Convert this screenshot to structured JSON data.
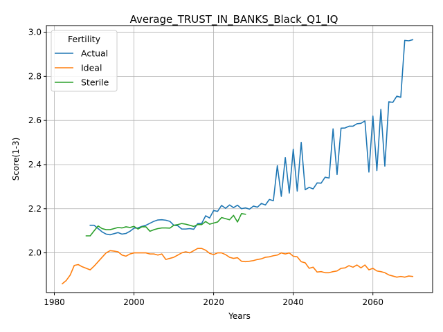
{
  "chart_data": {
    "type": "line",
    "title": "Average_TRUST_IN_BANKS_Black_Q1_IQ",
    "xlabel": "Years",
    "ylabel": "Score(1-3)",
    "xlim": [
      1978,
      2075
    ],
    "ylim": [
      1.82,
      3.03
    ],
    "xticks": [
      1980,
      2000,
      2020,
      2040,
      2060
    ],
    "yticks": [
      2.0,
      2.2,
      2.4,
      2.6,
      2.8,
      3.0
    ],
    "xtick_labels": [
      "1980",
      "2000",
      "2020",
      "2040",
      "2060"
    ],
    "ytick_labels": [
      "2.0",
      "2.2",
      "2.4",
      "2.6",
      "2.8",
      "3.0"
    ],
    "grid": true,
    "legend": {
      "title": "Fertility",
      "position": "top-left"
    },
    "series": [
      {
        "name": "Actual",
        "color": "#1f77b4",
        "x": [
          1989,
          1990,
          1991,
          1992,
          1993,
          1994,
          1995,
          1996,
          1997,
          1998,
          1999,
          2000,
          2001,
          2002,
          2003,
          2004,
          2005,
          2006,
          2007,
          2008,
          2009,
          2010,
          2011,
          2012,
          2013,
          2014,
          2015,
          2016,
          2017,
          2018,
          2019,
          2020,
          2021,
          2022,
          2023,
          2024,
          2025,
          2026,
          2027,
          2028,
          2029,
          2030,
          2031,
          2032,
          2033,
          2034,
          2035,
          2036,
          2037,
          2038,
          2039,
          2040,
          2041,
          2042,
          2043,
          2044,
          2045,
          2046,
          2047,
          2048,
          2049,
          2050,
          2051,
          2052,
          2053,
          2054,
          2055,
          2056,
          2057,
          2058,
          2059,
          2060,
          2061,
          2062,
          2063,
          2064,
          2065,
          2066,
          2067,
          2068,
          2069,
          2070
        ],
        "y": [
          2.125,
          2.125,
          2.11,
          2.095,
          2.085,
          2.082,
          2.087,
          2.092,
          2.085,
          2.088,
          2.098,
          2.112,
          2.113,
          2.12,
          2.125,
          2.134,
          2.143,
          2.149,
          2.15,
          2.148,
          2.143,
          2.125,
          2.123,
          2.108,
          2.108,
          2.11,
          2.107,
          2.133,
          2.133,
          2.168,
          2.158,
          2.192,
          2.188,
          2.215,
          2.202,
          2.217,
          2.205,
          2.216,
          2.2,
          2.204,
          2.198,
          2.212,
          2.207,
          2.224,
          2.217,
          2.242,
          2.236,
          2.395,
          2.256,
          2.432,
          2.271,
          2.47,
          2.28,
          2.501,
          2.286,
          2.297,
          2.29,
          2.317,
          2.316,
          2.343,
          2.339,
          2.562,
          2.355,
          2.565,
          2.566,
          2.574,
          2.574,
          2.585,
          2.587,
          2.598,
          2.366,
          2.62,
          2.373,
          2.65,
          2.393,
          2.685,
          2.682,
          2.71,
          2.705,
          2.963,
          2.961,
          2.966
        ]
      },
      {
        "name": "Ideal",
        "color": "#ff7f0e",
        "x": [
          1982,
          1983,
          1984,
          1985,
          1986,
          1987,
          1988,
          1989,
          1990,
          1991,
          1992,
          1993,
          1994,
          1995,
          1996,
          1997,
          1998,
          1999,
          2000,
          2001,
          2002,
          2003,
          2004,
          2005,
          2006,
          2007,
          2008,
          2009,
          2010,
          2011,
          2012,
          2013,
          2014,
          2015,
          2016,
          2017,
          2018,
          2019,
          2020,
          2021,
          2022,
          2023,
          2024,
          2025,
          2026,
          2027,
          2028,
          2029,
          2030,
          2031,
          2032,
          2033,
          2034,
          2035,
          2036,
          2037,
          2038,
          2039,
          2040,
          2041,
          2042,
          2043,
          2044,
          2045,
          2046,
          2047,
          2048,
          2049,
          2050,
          2051,
          2052,
          2053,
          2054,
          2055,
          2056,
          2057,
          2058,
          2059,
          2060,
          2061,
          2062,
          2063,
          2064,
          2065,
          2066,
          2067,
          2068,
          2069,
          2070
        ],
        "y": [
          1.86,
          1.875,
          1.9,
          1.943,
          1.947,
          1.937,
          1.93,
          1.923,
          1.94,
          1.96,
          1.98,
          2.0,
          2.01,
          2.008,
          2.005,
          1.99,
          1.985,
          1.995,
          2.0,
          2.0,
          2.0,
          2.0,
          1.995,
          1.995,
          1.99,
          1.995,
          1.97,
          1.975,
          1.98,
          1.99,
          2.0,
          2.005,
          2.0,
          2.01,
          2.02,
          2.02,
          2.012,
          1.998,
          1.992,
          2.0,
          2.0,
          1.992,
          1.98,
          1.975,
          1.978,
          1.962,
          1.96,
          1.962,
          1.965,
          1.97,
          1.973,
          1.98,
          1.982,
          1.987,
          1.99,
          2.0,
          1.995,
          2.0,
          1.985,
          1.982,
          1.96,
          1.955,
          1.93,
          1.935,
          1.913,
          1.915,
          1.91,
          1.91,
          1.915,
          1.918,
          1.93,
          1.932,
          1.942,
          1.935,
          1.945,
          1.932,
          1.945,
          1.923,
          1.93,
          1.918,
          1.915,
          1.91,
          1.9,
          1.895,
          1.89,
          1.893,
          1.89,
          1.895,
          1.893
        ]
      },
      {
        "name": "Sterile",
        "color": "#2ca02c",
        "x": [
          1988,
          1989,
          1990,
          1991,
          1992,
          1993,
          1994,
          1995,
          1996,
          1997,
          1998,
          1999,
          2000,
          2001,
          2002,
          2003,
          2004,
          2005,
          2006,
          2007,
          2008,
          2009,
          2010,
          2011,
          2012,
          2013,
          2014,
          2015,
          2016,
          2017,
          2018,
          2019,
          2020,
          2021,
          2022,
          2023,
          2024,
          2025,
          2026,
          2027,
          2028
        ],
        "y": [
          2.077,
          2.077,
          2.1,
          2.122,
          2.11,
          2.105,
          2.105,
          2.11,
          2.115,
          2.113,
          2.118,
          2.115,
          2.12,
          2.108,
          2.118,
          2.118,
          2.098,
          2.105,
          2.11,
          2.113,
          2.113,
          2.112,
          2.125,
          2.128,
          2.133,
          2.13,
          2.125,
          2.12,
          2.128,
          2.128,
          2.142,
          2.13,
          2.135,
          2.14,
          2.16,
          2.155,
          2.15,
          2.17,
          2.14,
          2.178,
          2.175
        ]
      }
    ]
  }
}
